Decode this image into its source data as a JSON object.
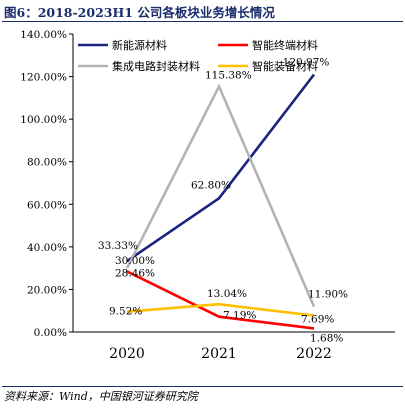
{
  "title": "图6：2018-2023H1 公司各板块业务增长情况",
  "source": "资料来源：Wind，中国银河证券研究院",
  "chart_data": {
    "type": "line",
    "x": [
      "2020",
      "2021",
      "2022"
    ],
    "ylim": [
      0,
      140
    ],
    "yticks": [
      0,
      20,
      40,
      60,
      80,
      100,
      120,
      140
    ],
    "ytick_labels": [
      "0.00%",
      "20.00%",
      "40.00%",
      "60.00%",
      "80.00%",
      "100.00%",
      "120.00%",
      "140.00%"
    ],
    "grid": false,
    "legend": "top",
    "series": [
      {
        "name": "新能源材料",
        "color": "#1a237e",
        "values": [
          33.33,
          62.8,
          120.97
        ],
        "labels": [
          "33.33%",
          "62.80%",
          "120.97%"
        ]
      },
      {
        "name": "智能终端材料",
        "color": "#ff0000",
        "values": [
          28.46,
          7.19,
          1.68
        ],
        "labels": [
          "28.46%",
          "7.19%",
          "1.68%"
        ]
      },
      {
        "name": "集成电路封装材料",
        "color": "#b3b3b3",
        "values": [
          30.0,
          115.38,
          11.9
        ],
        "labels": [
          "30.00%",
          "115.38%",
          "11.90%"
        ]
      },
      {
        "name": "智能装备材料",
        "color": "#ffc000",
        "values": [
          9.52,
          13.04,
          7.69
        ],
        "labels": [
          "9.52%",
          "13.04%",
          "7.69%"
        ]
      }
    ]
  }
}
